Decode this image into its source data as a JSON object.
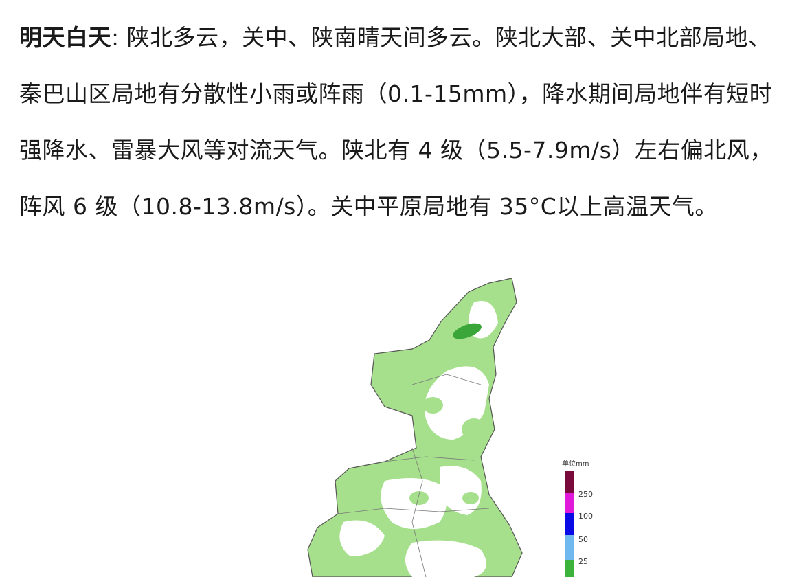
{
  "article": {
    "lead": "明天白天",
    "body": ": 陕北多云，关中、陕南晴天间多云。陕北大部、关中北部局地、秦巴山区局地有分散性小雨或阵雨（0.1-15mm），降水期间局地伴有短时强降水、雷暴大风等对流天气。陕北有 4 级（5.5-7.9m/s）左右偏北风，阵风 6 级（10.8-13.8m/s）。关中平原局地有 35°C以上高温天气。"
  },
  "map": {
    "legend": {
      "title": "单位mm",
      "ticks": [
        "250",
        "100",
        "50",
        "25"
      ],
      "colors": [
        "#7a0a3c",
        "#e01ad8",
        "#0a0ae6",
        "#6fb8f0",
        "#3cb43c"
      ]
    },
    "fill_colors": {
      "light_rain": "#a6e08c",
      "moderate_rain": "#3aa63a"
    }
  }
}
